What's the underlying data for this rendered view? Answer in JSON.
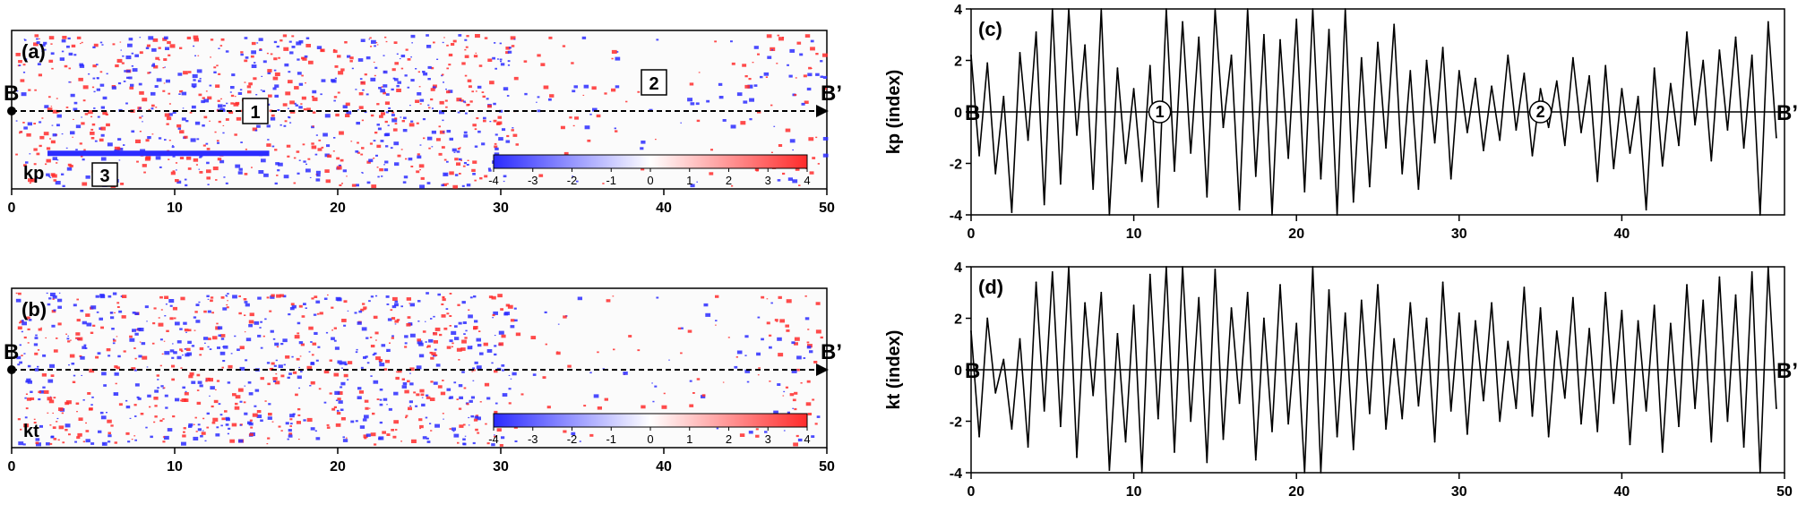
{
  "chart_data": [
    {
      "id": "a",
      "type": "heatmap",
      "panel_label": "(a)",
      "variable_label": "kp",
      "xlim": [
        0,
        50
      ],
      "x_ticks": [
        "0",
        "10",
        "20",
        "30",
        "40",
        "50"
      ],
      "profile_start_label": "B",
      "profile_end_label": "B’",
      "colorbar": {
        "ticks": [
          "-4",
          "-3",
          "-2",
          "-1",
          "0",
          "1",
          "2",
          "3",
          "4"
        ],
        "range": [
          -4,
          4
        ],
        "low_color": "#2b2bff",
        "mid_color": "#ffffff",
        "high_color": "#ff2b2b"
      },
      "annotations": [
        {
          "text": "1",
          "x": 14.9,
          "row": 0.43
        },
        {
          "text": "2",
          "x": 39.5,
          "row": 0.27
        },
        {
          "text": "3",
          "x": 5.7,
          "row": 0.79
        }
      ],
      "anomaly_band": {
        "x_range": [
          2.2,
          15.8
        ],
        "row": 0.77,
        "color": "#2b2bff"
      }
    },
    {
      "id": "b",
      "type": "heatmap",
      "panel_label": "(b)",
      "variable_label": "kt",
      "xlim": [
        0,
        50
      ],
      "x_ticks": [
        "0",
        "10",
        "20",
        "30",
        "40",
        "50"
      ],
      "profile_start_label": "B",
      "profile_end_label": "B’",
      "colorbar": {
        "ticks": [
          "-4",
          "-3",
          "-2",
          "-1",
          "0",
          "1",
          "2",
          "3",
          "4"
        ],
        "range": [
          -4,
          4
        ],
        "low_color": "#2b2bff",
        "mid_color": "#ffffff",
        "high_color": "#ff2b2b"
      }
    },
    {
      "id": "c",
      "type": "line",
      "panel_label": "(c)",
      "ylabel": "kp (index)",
      "xlim": [
        0,
        50
      ],
      "ylim": [
        -4,
        4
      ],
      "x_ticks": [
        "0",
        "10",
        "20",
        "30",
        "40"
      ],
      "y_ticks": [
        "4",
        "2",
        "0",
        "-2",
        "-4"
      ],
      "profile_start_label": "B",
      "profile_end_label": "B’",
      "markers": [
        {
          "text": "1",
          "x": 11.6,
          "y": 0
        },
        {
          "text": "2",
          "x": 35.0,
          "y": 0
        }
      ],
      "x": [
        0.0,
        0.5,
        1.0,
        1.5,
        2.0,
        2.5,
        3.0,
        3.5,
        4.0,
        4.5,
        5.0,
        5.5,
        6.0,
        6.5,
        7.0,
        7.5,
        8.0,
        8.5,
        9.0,
        9.5,
        10.0,
        10.5,
        11.0,
        11.5,
        12.0,
        12.5,
        13.0,
        13.5,
        14.0,
        14.5,
        15.0,
        15.5,
        16.0,
        16.5,
        17.0,
        17.5,
        18.0,
        18.5,
        19.0,
        19.5,
        20.0,
        20.5,
        21.0,
        21.5,
        22.0,
        22.5,
        23.0,
        23.5,
        24.0,
        24.5,
        25.0,
        25.5,
        26.0,
        26.5,
        27.0,
        27.5,
        28.0,
        28.5,
        29.0,
        29.5,
        30.0,
        30.5,
        31.0,
        31.5,
        32.0,
        32.5,
        33.0,
        33.5,
        34.0,
        34.5,
        35.0,
        35.5,
        36.0,
        36.5,
        37.0,
        37.5,
        38.0,
        38.5,
        39.0,
        39.5,
        40.0,
        40.5,
        41.0,
        41.5,
        42.0,
        42.5,
        43.0,
        43.5,
        44.0,
        44.5,
        45.0,
        45.5,
        46.0,
        46.5,
        47.0,
        47.5,
        48.0,
        48.5,
        49.0,
        49.5
      ],
      "values": [
        2.2,
        -1.7,
        1.9,
        -2.4,
        0.6,
        -3.9,
        2.3,
        -1.1,
        3.1,
        -3.6,
        4.0,
        -2.8,
        4.0,
        -0.9,
        2.6,
        -3.0,
        4.0,
        -4.0,
        1.7,
        -2.0,
        0.9,
        -2.7,
        1.8,
        -3.7,
        4.0,
        -2.3,
        3.5,
        -1.6,
        2.9,
        -3.3,
        4.0,
        -0.6,
        2.2,
        -3.8,
        4.0,
        -2.5,
        3.0,
        -4.0,
        2.8,
        -1.8,
        3.6,
        -3.1,
        4.0,
        -2.6,
        3.2,
        -4.0,
        4.0,
        -3.5,
        2.1,
        -2.9,
        2.7,
        -1.4,
        3.4,
        -2.4,
        1.6,
        -3.0,
        2.0,
        -1.2,
        2.5,
        -2.6,
        1.6,
        -0.8,
        1.3,
        -1.5,
        1.0,
        -1.1,
        2.2,
        -0.7,
        1.5,
        -1.7,
        0.9,
        -0.6,
        1.2,
        -1.3,
        2.1,
        -0.8,
        1.4,
        -2.7,
        1.8,
        -2.2,
        0.9,
        -1.6,
        0.6,
        -3.8,
        1.7,
        -2.1,
        1.1,
        -1.3,
        3.1,
        -0.5,
        2.0,
        -1.9,
        2.4,
        -0.7,
        2.9,
        -1.4,
        2.2,
        -4.0,
        3.5,
        -1.0
      ],
      "color": "#000000"
    },
    {
      "id": "d",
      "type": "line",
      "panel_label": "(d)",
      "ylabel": "kt (index)",
      "xlim": [
        0,
        50
      ],
      "ylim": [
        -4,
        4
      ],
      "x_ticks": [
        "0",
        "10",
        "20",
        "30",
        "40",
        "50"
      ],
      "y_ticks": [
        "4",
        "2",
        "0",
        "-2",
        "-4"
      ],
      "profile_start_label": "B",
      "profile_end_label": "B’",
      "x": [
        0.0,
        0.5,
        1.0,
        1.5,
        2.0,
        2.5,
        3.0,
        3.5,
        4.0,
        4.5,
        5.0,
        5.5,
        6.0,
        6.5,
        7.0,
        7.5,
        8.0,
        8.5,
        9.0,
        9.5,
        10.0,
        10.5,
        11.0,
        11.5,
        12.0,
        12.5,
        13.0,
        13.5,
        14.0,
        14.5,
        15.0,
        15.5,
        16.0,
        16.5,
        17.0,
        17.5,
        18.0,
        18.5,
        19.0,
        19.5,
        20.0,
        20.5,
        21.0,
        21.5,
        22.0,
        22.5,
        23.0,
        23.5,
        24.0,
        24.5,
        25.0,
        25.5,
        26.0,
        26.5,
        27.0,
        27.5,
        28.0,
        28.5,
        29.0,
        29.5,
        30.0,
        30.5,
        31.0,
        31.5,
        32.0,
        32.5,
        33.0,
        33.5,
        34.0,
        34.5,
        35.0,
        35.5,
        36.0,
        36.5,
        37.0,
        37.5,
        38.0,
        38.5,
        39.0,
        39.5,
        40.0,
        40.5,
        41.0,
        41.5,
        42.0,
        42.5,
        43.0,
        43.5,
        44.0,
        44.5,
        45.0,
        45.5,
        46.0,
        46.5,
        47.0,
        47.5,
        48.0,
        48.5,
        49.0,
        49.5
      ],
      "values": [
        1.5,
        -2.6,
        2.0,
        -0.9,
        0.4,
        -2.3,
        1.2,
        -3.0,
        3.4,
        -1.6,
        3.8,
        -2.2,
        4.0,
        -3.4,
        2.6,
        -1.0,
        3.0,
        -3.9,
        1.4,
        -2.8,
        2.5,
        -4.0,
        3.7,
        -1.9,
        4.0,
        -3.2,
        4.0,
        -2.0,
        2.8,
        -3.6,
        3.9,
        -2.7,
        2.4,
        -1.3,
        3.0,
        -3.5,
        2.0,
        -2.4,
        3.3,
        -2.1,
        1.8,
        -4.0,
        4.0,
        -4.0,
        3.1,
        -2.6,
        2.2,
        -3.1,
        2.7,
        -1.7,
        3.3,
        -2.3,
        1.2,
        -1.9,
        2.6,
        -1.4,
        2.0,
        -2.8,
        3.4,
        -1.6,
        2.2,
        -2.5,
        1.9,
        -1.2,
        2.6,
        -2.0,
        1.1,
        -1.5,
        3.2,
        -1.8,
        2.4,
        -2.6,
        1.5,
        -1.1,
        2.8,
        -2.1,
        1.6,
        -2.4,
        3.0,
        -1.3,
        2.3,
        -2.9,
        1.9,
        -1.6,
        2.5,
        -3.2,
        1.8,
        -2.2,
        3.3,
        -1.5,
        2.7,
        -2.8,
        3.6,
        -2.0,
        2.9,
        -3.0,
        3.8,
        -4.0,
        4.0,
        -1.5
      ],
      "color": "#000000"
    }
  ]
}
